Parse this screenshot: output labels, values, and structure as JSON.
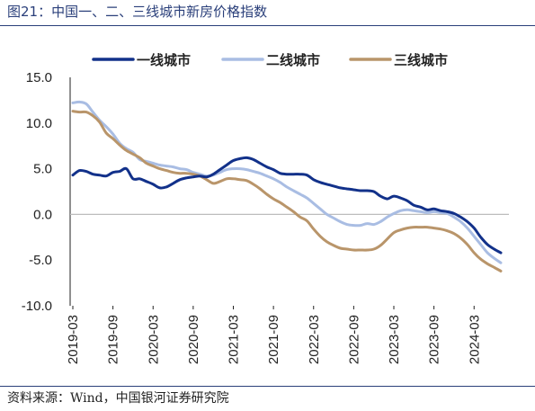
{
  "title": "图21：中国一、二、三线城市新房价格指数",
  "source": "资料来源：Wind，中国银河证券研究院",
  "chart_data": {
    "type": "line",
    "title": "",
    "xlabel": "",
    "ylabel": "",
    "ylim": [
      -10,
      15
    ],
    "yticks": [
      "15.0",
      "10.0",
      "5.0",
      "0.0",
      "-5.0",
      "-10.0"
    ],
    "xticks": [
      "2019-03",
      "2019-09",
      "2020-03",
      "2020-09",
      "2021-03",
      "2021-09",
      "2022-03",
      "2022-09",
      "2023-03",
      "2023-09",
      "2024-03"
    ],
    "legend": "top",
    "grid": false,
    "colors": {
      "tier1": "#12318a",
      "tier2": "#a9bde3",
      "tier3": "#b9956a",
      "negative_tick": "#d11a1a",
      "zero_line": "#bdbdbd"
    },
    "x": [
      "2019-03",
      "2019-04",
      "2019-05",
      "2019-06",
      "2019-07",
      "2019-08",
      "2019-09",
      "2019-10",
      "2019-11",
      "2019-12",
      "2020-01",
      "2020-02",
      "2020-03",
      "2020-04",
      "2020-05",
      "2020-06",
      "2020-07",
      "2020-08",
      "2020-09",
      "2020-10",
      "2020-11",
      "2020-12",
      "2021-01",
      "2021-02",
      "2021-03",
      "2021-04",
      "2021-05",
      "2021-06",
      "2021-07",
      "2021-08",
      "2021-09",
      "2021-10",
      "2021-11",
      "2021-12",
      "2022-01",
      "2022-02",
      "2022-03",
      "2022-04",
      "2022-05",
      "2022-06",
      "2022-07",
      "2022-08",
      "2022-09",
      "2022-10",
      "2022-11",
      "2022-12",
      "2023-01",
      "2023-02",
      "2023-03",
      "2023-04",
      "2023-05",
      "2023-06",
      "2023-07",
      "2023-08",
      "2023-09",
      "2023-10",
      "2023-11",
      "2023-12",
      "2024-01",
      "2024-02",
      "2024-03",
      "2024-04",
      "2024-05",
      "2024-06",
      "2024-07"
    ],
    "series": [
      {
        "name": "一线城市",
        "values": [
          4.3,
          4.8,
          4.7,
          4.4,
          4.3,
          4.2,
          4.6,
          4.7,
          5.0,
          3.9,
          3.9,
          3.6,
          3.3,
          2.9,
          3.0,
          3.4,
          3.8,
          4.0,
          4.1,
          4.2,
          4.1,
          4.4,
          4.9,
          5.4,
          5.9,
          6.1,
          6.2,
          6.0,
          5.6,
          5.2,
          4.9,
          4.5,
          4.4,
          4.4,
          4.4,
          4.3,
          3.8,
          3.5,
          3.3,
          3.1,
          2.9,
          2.8,
          2.7,
          2.6,
          2.6,
          2.5,
          2.0,
          1.7,
          2.0,
          1.8,
          1.5,
          1.0,
          0.8,
          0.5,
          0.6,
          0.4,
          0.3,
          0.1,
          -0.3,
          -0.8,
          -1.5,
          -2.5,
          -3.3,
          -3.8,
          -4.2
        ]
      },
      {
        "name": "二线城市",
        "values": [
          12.2,
          12.3,
          12.1,
          11.2,
          10.3,
          9.6,
          8.8,
          7.8,
          7.2,
          6.8,
          6.0,
          5.8,
          5.6,
          5.4,
          5.3,
          5.2,
          5.0,
          4.9,
          4.6,
          4.4,
          4.2,
          4.3,
          4.6,
          4.9,
          5.0,
          5.0,
          4.9,
          4.7,
          4.5,
          4.2,
          3.9,
          3.5,
          3.0,
          2.6,
          2.2,
          1.8,
          1.2,
          0.6,
          0.0,
          -0.4,
          -0.8,
          -1.1,
          -1.2,
          -1.2,
          -1.0,
          -1.1,
          -0.8,
          -0.3,
          0.1,
          0.4,
          0.5,
          0.4,
          0.3,
          0.2,
          0.3,
          0.2,
          0.1,
          -0.3,
          -0.8,
          -1.5,
          -2.4,
          -3.3,
          -4.2,
          -4.8,
          -5.3
        ]
      },
      {
        "name": "三线城市",
        "values": [
          11.3,
          11.2,
          11.2,
          10.8,
          10.1,
          8.9,
          8.3,
          7.6,
          7.0,
          6.6,
          6.2,
          5.6,
          5.3,
          5.0,
          4.8,
          4.6,
          4.5,
          4.5,
          4.4,
          4.2,
          3.8,
          3.4,
          3.6,
          3.9,
          3.9,
          3.8,
          3.7,
          3.3,
          2.8,
          2.2,
          1.7,
          1.3,
          0.8,
          0.3,
          -0.3,
          -0.7,
          -1.6,
          -2.4,
          -3.0,
          -3.4,
          -3.7,
          -3.8,
          -3.9,
          -3.9,
          -3.9,
          -3.8,
          -3.4,
          -2.7,
          -2.0,
          -1.7,
          -1.5,
          -1.4,
          -1.4,
          -1.4,
          -1.5,
          -1.6,
          -1.8,
          -2.1,
          -2.6,
          -3.3,
          -4.2,
          -4.9,
          -5.4,
          -5.8,
          -6.2
        ]
      }
    ]
  }
}
